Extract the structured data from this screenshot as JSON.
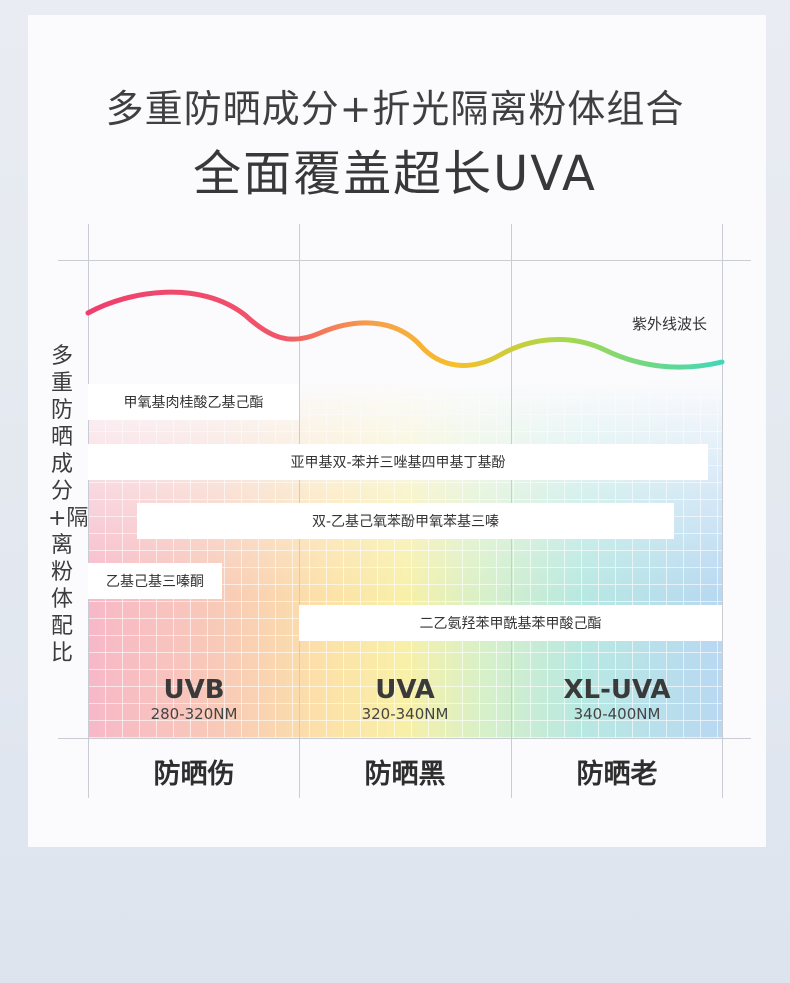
{
  "title": {
    "line1": "多重防晒成分+折光隔离粉体组合",
    "line2": "全面覆盖超长UVA"
  },
  "y_axis_label": "多重防晒成分+隔离粉体配比",
  "wave_label": "紫外线波长",
  "ingredients": [
    {
      "name": "甲氧基肉桂酸乙基己酯"
    },
    {
      "name": "亚甲基双-苯并三唑基四甲基丁基酚"
    },
    {
      "name": "双-乙基己氧苯酚甲氧苯基三嗪"
    },
    {
      "name": "乙基己基三嗪酮"
    },
    {
      "name": "二乙氨羟苯甲酰基苯甲酸己酯"
    }
  ],
  "bands": [
    {
      "name": "UVB",
      "range": "280-320NM",
      "effect": "防晒伤"
    },
    {
      "name": "UVA",
      "range": "320-340NM",
      "effect": "防晒黑"
    },
    {
      "name": "XL-UVA",
      "range": "340-400NM",
      "effect": "防晒老"
    }
  ],
  "colors": {
    "wave_start": "#ee3f6e",
    "wave_mid": "#f5c02a",
    "wave_end": "#3fd8b8"
  }
}
